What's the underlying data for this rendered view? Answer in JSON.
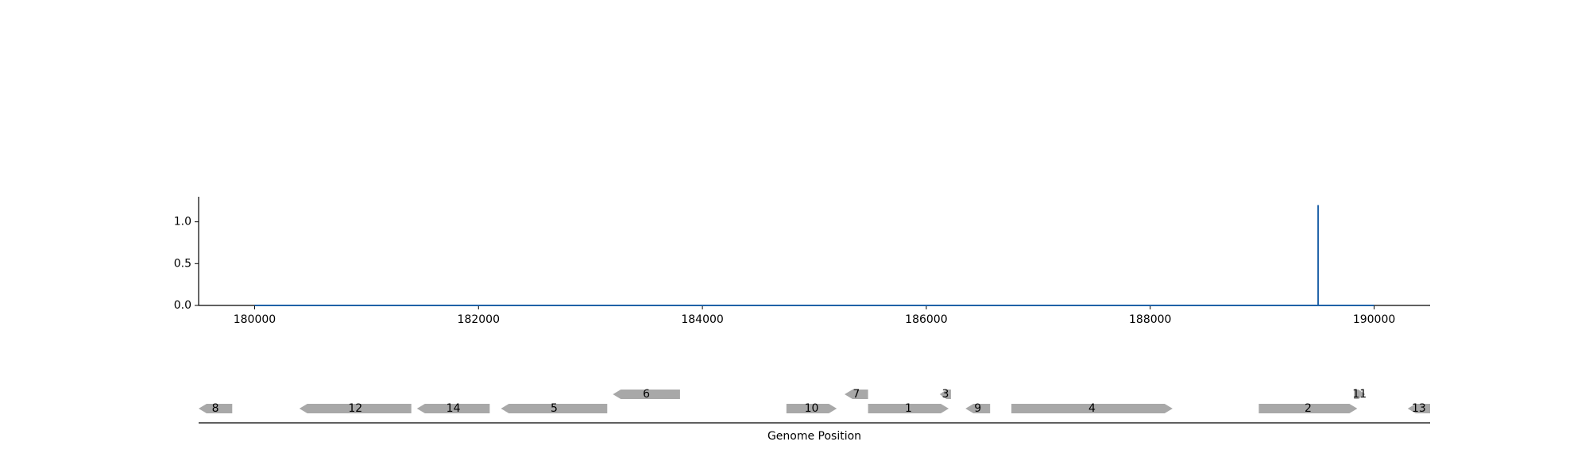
{
  "chart_data": [
    {
      "type": "line",
      "x": [
        180000,
        189500,
        189500,
        189500,
        190000
      ],
      "y": [
        0,
        0,
        1.2,
        0,
        0
      ],
      "line_color": "#1f62a8",
      "xlim": [
        179500,
        190500
      ],
      "ylim": [
        0,
        1.3
      ],
      "xticks": [
        180000,
        182000,
        184000,
        186000,
        188000,
        190000
      ],
      "xtick_labels": [
        "180000",
        "182000",
        "184000",
        "186000",
        "188000",
        "190000"
      ],
      "yticks": [
        0.0,
        0.5,
        1.0
      ],
      "ytick_labels": [
        "0.0",
        "0.5",
        "1.0"
      ],
      "grid": false,
      "legend": "none"
    },
    {
      "type": "gene-map",
      "xlabel": "Genome Position",
      "feature_color": "#a8a8a8",
      "features": [
        {
          "label": "8",
          "start": 179500,
          "end": 179800,
          "strand": -1,
          "row": 0
        },
        {
          "label": "12",
          "start": 180400,
          "end": 181400,
          "strand": -1,
          "row": 0
        },
        {
          "label": "14",
          "start": 181450,
          "end": 182100,
          "strand": -1,
          "row": 0
        },
        {
          "label": "5",
          "start": 182200,
          "end": 183150,
          "strand": -1,
          "row": 0
        },
        {
          "label": "6",
          "start": 183200,
          "end": 183800,
          "strand": -1,
          "row": 1
        },
        {
          "label": "10",
          "start": 184750,
          "end": 185200,
          "strand": 1,
          "row": 0
        },
        {
          "label": "7",
          "start": 185270,
          "end": 185480,
          "strand": -1,
          "row": 1
        },
        {
          "label": "1",
          "start": 185480,
          "end": 186200,
          "strand": 1,
          "row": 0
        },
        {
          "label": "3",
          "start": 186120,
          "end": 186220,
          "strand": -1,
          "row": 1
        },
        {
          "label": "9",
          "start": 186350,
          "end": 186570,
          "strand": -1,
          "row": 0
        },
        {
          "label": "4",
          "start": 186760,
          "end": 188200,
          "strand": 1,
          "row": 0
        },
        {
          "label": "2",
          "start": 188970,
          "end": 189850,
          "strand": 1,
          "row": 0
        },
        {
          "label": "11",
          "start": 189820,
          "end": 189920,
          "strand": 1,
          "row": 1
        },
        {
          "label": "13",
          "start": 190300,
          "end": 190500,
          "strand": -1,
          "row": 0
        }
      ]
    }
  ]
}
